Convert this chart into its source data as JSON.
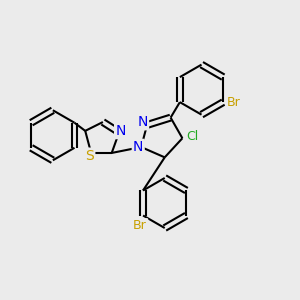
{
  "background_color": "#ebebeb",
  "bond_color": "#000000",
  "bond_width": 1.5,
  "figsize": [
    3.0,
    3.0
  ],
  "dpi": 100,
  "xlim": [
    0,
    10
  ],
  "ylim": [
    0,
    10
  ]
}
